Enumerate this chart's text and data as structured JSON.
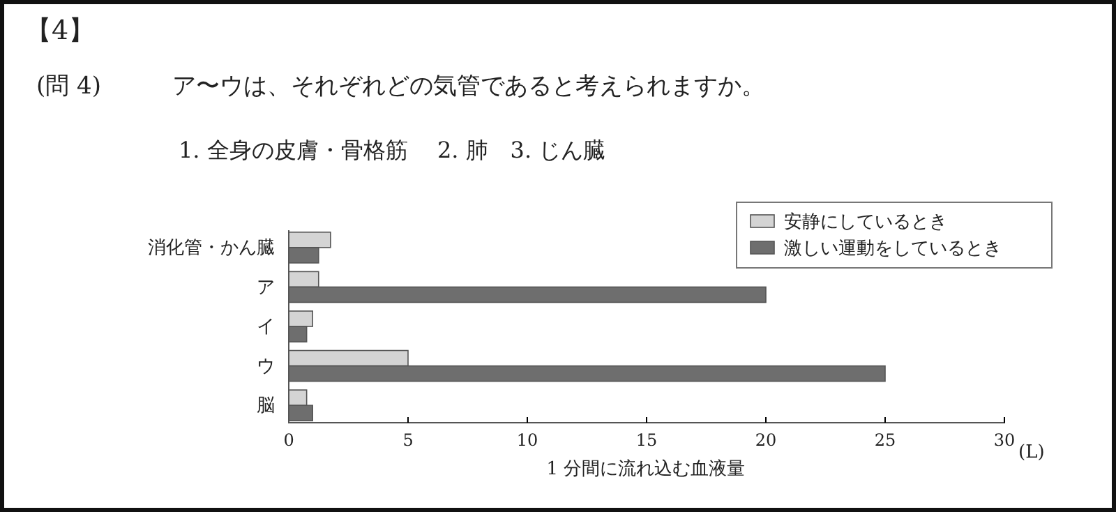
{
  "chart_data": {
    "type": "bar",
    "orientation": "horizontal",
    "title": "【4】",
    "subtitle": "(問 4)　　　ア〜ウは、それぞれどの気管であると考えられますか。",
    "categories": [
      "消化管・かん臓",
      "ア",
      "イ",
      "ウ",
      "脳"
    ],
    "series": [
      {
        "name": "安静にしているとき",
        "color": "#d4d4d4",
        "values": [
          1.75,
          1.25,
          1.0,
          5,
          0.75
        ]
      },
      {
        "name": "激しい運動をしているとき",
        "color": "#6e6e6e",
        "values": [
          1.25,
          20,
          0.75,
          25,
          1.0
        ]
      }
    ],
    "xlim": [
      0,
      30
    ],
    "xticks": [
      0,
      5,
      10,
      15,
      20,
      25,
      30
    ],
    "xlabel": "1 分間に流れ込む血液量",
    "annotations": [
      "(L)",
      "1. 全身の皮膚・骨格筋　 2. 肺　3. じん臓"
    ],
    "legend": "top right",
    "grid": false
  }
}
